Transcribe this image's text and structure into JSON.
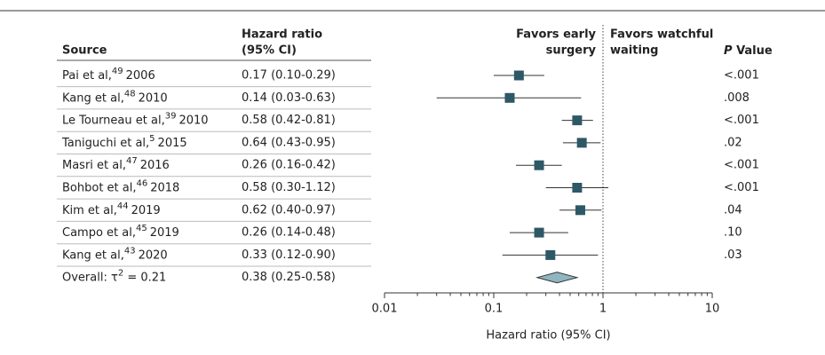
{
  "chart_data": {
    "type": "forest",
    "headers": {
      "source": "Source",
      "hr_line1": "Hazard ratio",
      "hr_line2": "(95% CI)",
      "left_favors_line1": "Favors early",
      "left_favors_line2": "surgery",
      "right_favors_line1": "Favors watchful",
      "right_favors_line2": "waiting",
      "p_italic": "P",
      "p_rest": "Value"
    },
    "sources": [
      "Pai et al,",
      "Kang et al,",
      "Le Tourneau et al,",
      "Taniguchi et al,",
      "Masri et al,",
      "Bohbot et al,",
      "Kim et al,",
      "Campo et al,",
      "Kang et al,"
    ],
    "refs": [
      "49",
      "48",
      "39",
      "5",
      "47",
      "46",
      "44",
      "45",
      "43"
    ],
    "years": [
      "2006",
      "2010",
      "2010",
      "2015",
      "2016",
      "2018",
      "2019",
      "2019",
      "2020"
    ],
    "hr_labels": [
      "0.17 (0.10-0.29)",
      "0.14 (0.03-0.63)",
      "0.58 (0.42-0.81)",
      "0.64 (0.43-0.95)",
      "0.26 (0.16-0.42)",
      "0.58 (0.30-1.12)",
      "0.62 (0.40-0.97)",
      "0.26 (0.14-0.48)",
      "0.33 (0.12-0.90)"
    ],
    "values": [
      0.17,
      0.14,
      0.58,
      0.64,
      0.26,
      0.58,
      0.62,
      0.26,
      0.33
    ],
    "lower": [
      0.1,
      0.03,
      0.42,
      0.43,
      0.16,
      0.3,
      0.4,
      0.14,
      0.12
    ],
    "upper": [
      0.29,
      0.63,
      0.81,
      0.95,
      0.42,
      1.12,
      0.97,
      0.48,
      0.9
    ],
    "p_values": [
      "<.001",
      ".008",
      "<.001",
      ".02",
      "<.001",
      "<.001",
      ".04",
      ".10",
      ".03"
    ],
    "overall": {
      "label": "Overall: τ",
      "sup": "2",
      "rest": " = 0.21",
      "hr_label": "0.38 (0.25-0.58)",
      "value": 0.38,
      "lower": 0.25,
      "upper": 0.58
    },
    "color": "#2e5866",
    "diamond_color": "#8fb5c0",
    "xlabel": "Hazard ratio (95% CI)",
    "xscale": "log",
    "xlim": [
      0.01,
      10
    ],
    "xticks": [
      0.01,
      0.1,
      1,
      10
    ],
    "xminorticks": [
      0.02,
      0.03,
      0.04,
      0.05,
      0.06,
      0.07,
      0.08,
      0.09,
      0.2,
      0.3,
      0.4,
      0.5,
      0.6,
      0.7,
      0.8,
      0.9,
      2,
      3,
      4,
      5,
      6,
      7,
      8,
      9
    ],
    "refline": 1
  }
}
